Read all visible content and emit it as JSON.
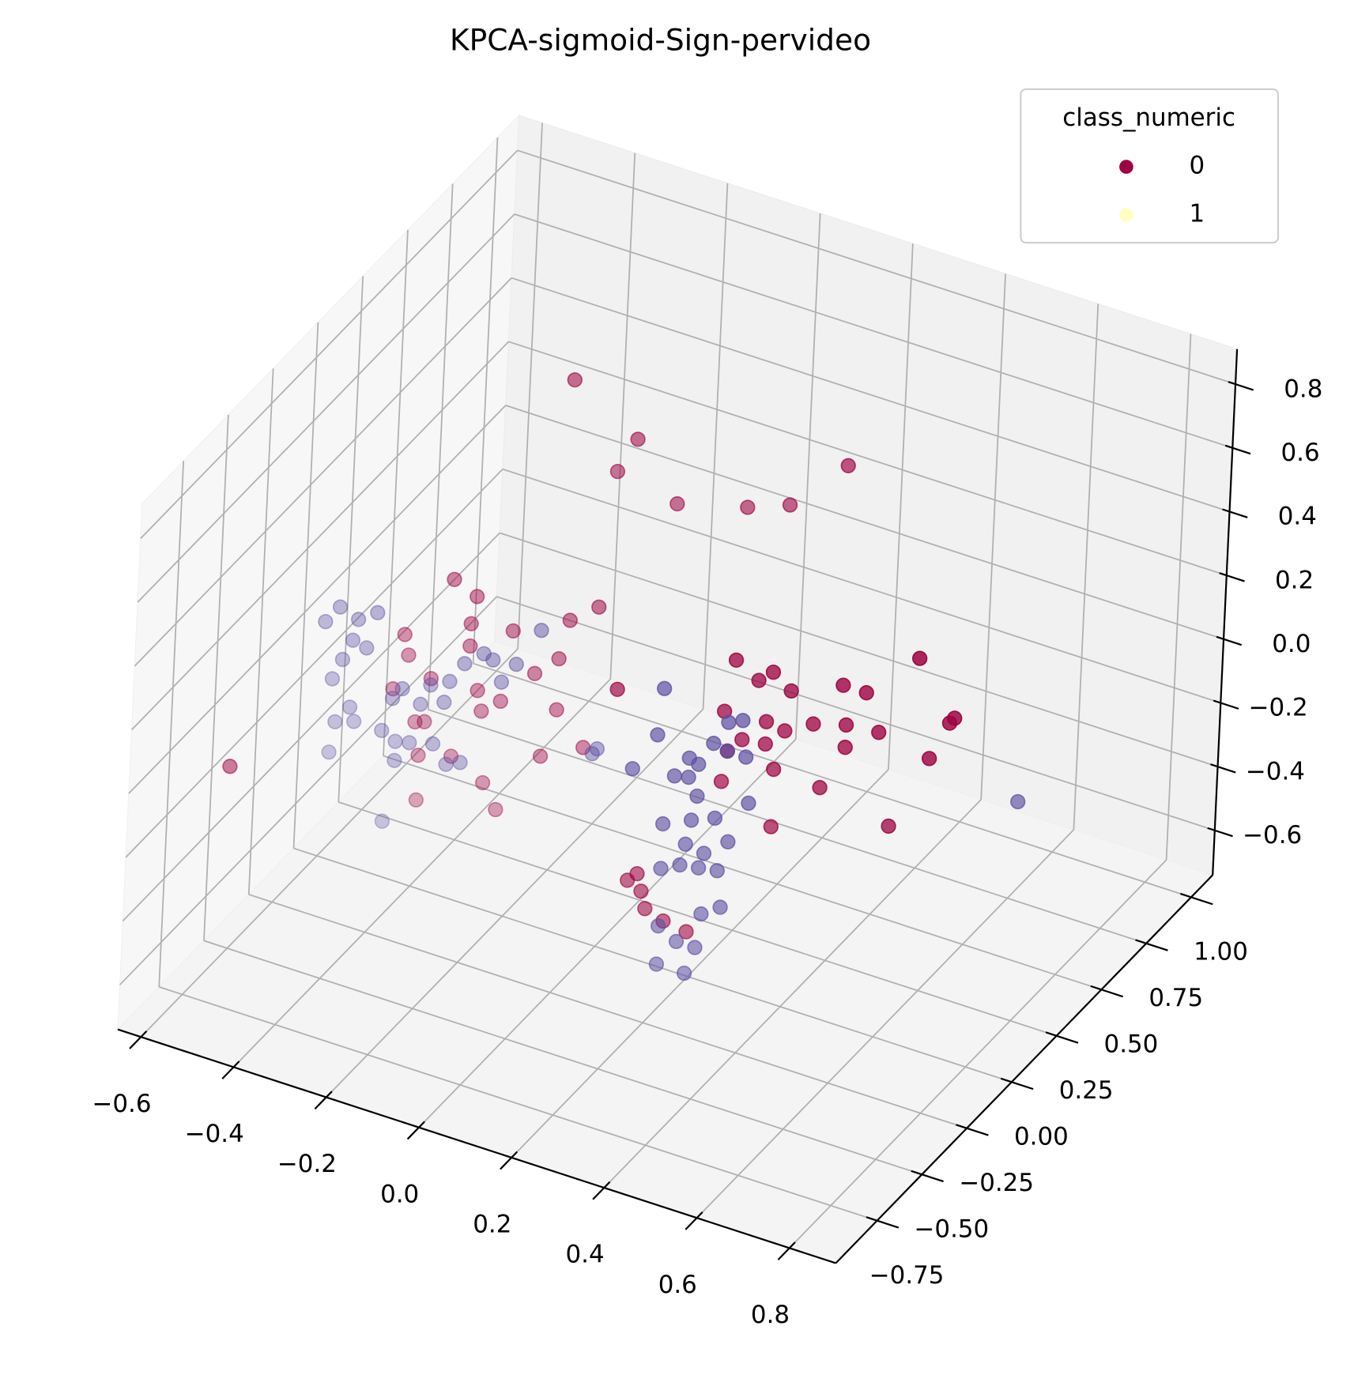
{
  "chart_data": {
    "type": "scatter3d",
    "title": "KPCA-sigmoid-Sign-pervideo",
    "xlim": [
      -0.65,
      0.9
    ],
    "ylim": [
      -0.98,
      1.12
    ],
    "zlim": [
      -0.74,
      0.91
    ],
    "xticks": [
      {
        "value": -0.6,
        "label": "−0.6"
      },
      {
        "value": -0.4,
        "label": "−0.4"
      },
      {
        "value": -0.2,
        "label": "−0.2"
      },
      {
        "value": 0,
        "label": "0.0"
      },
      0.2,
      0.4,
      0.6,
      0.8
    ],
    "yticks": [
      {
        "value": -0.75,
        "label": "−0.75"
      },
      {
        "value": -0.5,
        "label": "−0.50"
      },
      {
        "value": -0.25,
        "label": "−0.25"
      },
      {
        "value": 0,
        "label": "0.00"
      },
      0.25,
      {
        "value": 0.5,
        "label": "0.50"
      },
      0.75,
      {
        "value": 1,
        "label": "1.00"
      }
    ],
    "zticks": [
      {
        "value": -0.6,
        "label": "−0.6"
      },
      {
        "value": -0.4,
        "label": "−0.4"
      },
      {
        "value": -0.2,
        "label": "−0.2"
      },
      {
        "value": 0,
        "label": "0.0"
      },
      0.2,
      0.4,
      0.6,
      0.8
    ],
    "grid": true,
    "legend": {
      "title": "class_numeric",
      "loc": "upper right"
    },
    "series": [
      {
        "name": "0",
        "color": "#9e0142",
        "legend_color": "#9e0142",
        "x": [
          -0.59,
          -0.2,
          -0.06,
          -0.1,
          0.03,
          0.18,
          0.27,
          0.39,
          -0.36,
          -0.31,
          -0.05,
          -0.11,
          -0.32,
          -0.23,
          -0.46,
          -0.13,
          -0.32,
          -0.45,
          -0.18,
          -0.4,
          -0.3,
          -0.48,
          -0.25,
          -0.29,
          -0.43,
          -0.13,
          0.15,
          0.4,
          0.48,
          0.45,
          0.52,
          0.63,
          0.68,
          0.79,
          0.38,
          0.47,
          0.57,
          0.64,
          0.71,
          0.87,
          0.86,
          0.64,
          0.51,
          0.47,
          0.42,
          0.39,
          -0.16,
          -0.07,
          -0.42,
          -0.35,
          -0.28,
          -0.42,
          -0.25,
          0.38,
          0.49,
          0.59,
          0.82,
          0.74,
          0.49,
          0.19,
          0.21,
          0.22,
          0.23,
          0.27,
          0.32,
          -0.41
        ],
        "y": [
          -0.56,
          0.28,
          0.28,
          0.28,
          0.28,
          0.28,
          0.28,
          0.28,
          0.07,
          0.07,
          0.07,
          0.07,
          0.07,
          0.07,
          0.07,
          0.07,
          0.07,
          0.07,
          0.07,
          0.07,
          0.07,
          0.07,
          0.07,
          0.07,
          0.07,
          0.07,
          -0.35,
          -0.35,
          -0.35,
          -0.35,
          -0.35,
          -0.35,
          -0.35,
          -0.35,
          -0.35,
          -0.35,
          -0.35,
          -0.35,
          -0.35,
          -0.35,
          -0.35,
          -0.35,
          -0.35,
          -0.35,
          -0.35,
          -0.35,
          0.07,
          0.07,
          0.07,
          0.07,
          0.07,
          0.07,
          0.07,
          -0.35,
          -0.35,
          -0.35,
          -0.35,
          -0.35,
          -0.35,
          -0.35,
          -0.35,
          -0.35,
          -0.35,
          -0.35,
          -0.35,
          0.07
        ],
        "z": [
          -0.13,
          0.78,
          0.66,
          0.54,
          0.5,
          0.56,
          0.61,
          0.79,
          0.2,
          0.17,
          0.26,
          0.19,
          0.08,
          0.1,
          -0.02,
          0.06,
          0.01,
          -0.08,
          -0.01,
          -0.13,
          -0.12,
          -0.2,
          -0.13,
          -0.18,
          -0.28,
          -0.1,
          0.34,
          0.55,
          0.55,
          0.51,
          0.51,
          0.58,
          0.58,
          0.74,
          0.38,
          0.39,
          0.43,
          0.46,
          0.47,
          0.59,
          0.57,
          0.39,
          0.38,
          0.32,
          0.31,
          0.26,
          -0.26,
          -0.19,
          -0.38,
          -0.35,
          -0.4,
          -0.52,
          -0.47,
          0.16,
          0.25,
          0.24,
          0.44,
          0.19,
          0.07,
          -0.24,
          -0.21,
          -0.26,
          -0.31,
          -0.33,
          -0.34,
          -0.27
        ]
      },
      {
        "name": "1",
        "color": "#5e4fa2",
        "legend_color": "#ffffbf",
        "x": [
          -0.6,
          -0.63,
          -0.56,
          -0.52,
          -0.57,
          -0.54,
          -0.59,
          -0.61,
          -0.57,
          -0.6,
          -0.56,
          -0.5,
          -0.48,
          -0.46,
          -0.42,
          -0.4,
          -0.37,
          -0.36,
          -0.33,
          -0.29,
          -0.27,
          -0.25,
          -0.22,
          -0.17,
          -0.47,
          -0.44,
          -0.39,
          -0.47,
          -0.61,
          -0.36,
          -0.33,
          -0.49,
          0.25,
          0.24,
          -0.04,
          -0.05,
          0.19,
          0.39,
          0.42,
          0.36,
          0.39,
          0.31,
          0.33,
          0.28,
          0.31,
          0.33,
          0.32,
          0.26,
          0.37,
          0.44,
          0.4,
          0.31,
          0.35,
          0.3,
          0.26,
          0.34,
          0.38,
          0.39,
          0.35,
          0.26,
          0.3,
          0.34,
          0.26,
          0.32,
          0.86,
          0.43
        ],
        "y": [
          0.07,
          0.07,
          0.07,
          0.07,
          0.07,
          0.07,
          0.07,
          0.07,
          0.07,
          0.07,
          0.07,
          0.07,
          0.07,
          0.07,
          0.07,
          0.07,
          0.07,
          0.07,
          0.07,
          0.07,
          0.07,
          0.07,
          0.07,
          0.07,
          0.07,
          0.07,
          0.07,
          0.07,
          0.07,
          0.07,
          0.07,
          0.07,
          -0.35,
          -0.35,
          0.07,
          0.07,
          -0.35,
          -0.35,
          -0.35,
          -0.35,
          -0.35,
          -0.35,
          -0.35,
          -0.35,
          -0.35,
          -0.35,
          -0.35,
          -0.35,
          -0.35,
          -0.35,
          -0.35,
          -0.35,
          -0.35,
          -0.35,
          -0.35,
          -0.35,
          -0.35,
          -0.35,
          -0.35,
          -0.35,
          -0.35,
          -0.35,
          -0.35,
          -0.35,
          0.07,
          -0.35
        ],
        "z": [
          0.0,
          -0.06,
          -0.02,
          0.02,
          -0.09,
          -0.1,
          -0.16,
          -0.23,
          -0.3,
          -0.36,
          -0.34,
          -0.34,
          -0.23,
          -0.19,
          -0.22,
          -0.15,
          -0.19,
          -0.12,
          -0.05,
          0.0,
          -0.01,
          -0.07,
          0.0,
          0.13,
          -0.36,
          -0.35,
          -0.33,
          -0.42,
          -0.46,
          -0.38,
          -0.36,
          -0.62,
          0.39,
          0.24,
          -0.18,
          -0.2,
          0.11,
          0.35,
          0.37,
          0.27,
          0.26,
          0.2,
          0.19,
          0.13,
          0.14,
          0.09,
          0.01,
          -0.03,
          0.04,
          0.12,
          -0.02,
          -0.07,
          -0.08,
          -0.14,
          -0.17,
          -0.13,
          -0.12,
          -0.23,
          -0.27,
          -0.35,
          -0.38,
          -0.38,
          -0.47,
          -0.47,
          0.08,
          0.26
        ]
      }
    ]
  }
}
